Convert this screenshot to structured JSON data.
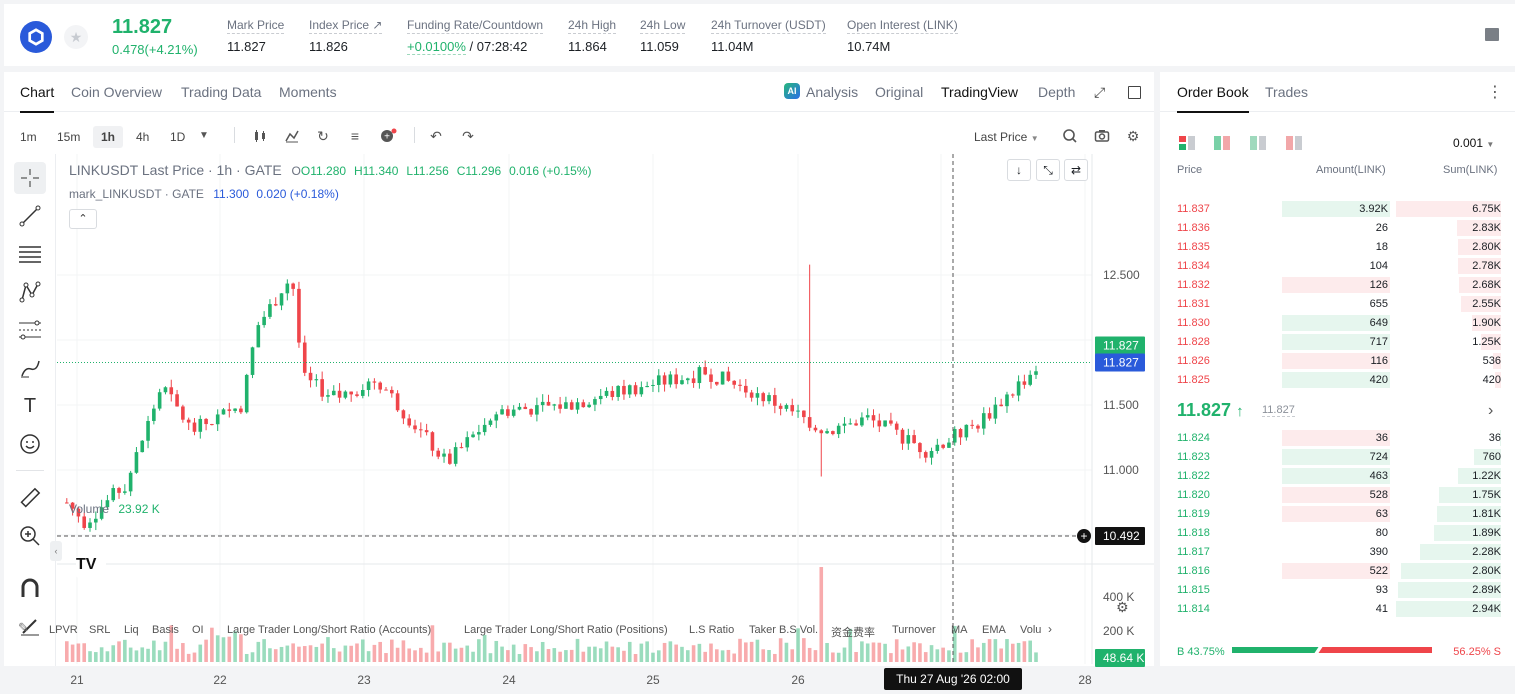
{
  "header": {
    "last_price": "11.827",
    "change": "0.478(+4.21%)",
    "stats": [
      {
        "label": "Mark Price",
        "value": "11.827"
      },
      {
        "label": "Index Price ↗",
        "value": "11.826"
      },
      {
        "label": "Funding Rate/Countdown",
        "value_green": "+0.0100%",
        "value": " / 07:28:42"
      },
      {
        "label": "24h High",
        "value": "11.864"
      },
      {
        "label": "24h Low",
        "value": "11.059"
      },
      {
        "label": "24h Turnover (USDT)",
        "value": "11.04M"
      },
      {
        "label": "Open Interest (LINK)",
        "value": "10.74M"
      }
    ],
    "colors": {
      "up": "#20b26c",
      "down": "#ef454a",
      "brand": "#2a5ada"
    }
  },
  "chart_panel": {
    "tabs": [
      "Chart",
      "Coin Overview",
      "Trading Data",
      "Moments"
    ],
    "active_tab": "Chart",
    "views": [
      "Analysis",
      "Original",
      "TradingView",
      "Depth"
    ],
    "selected_view": "TradingView",
    "timeframes": [
      "1m",
      "15m",
      "1h",
      "4h",
      "1D"
    ],
    "selected_timeframe": "1h",
    "price_type": "Last Price",
    "legend_title": "LINKUSDT Last Price · 1h · GATE",
    "legend_o": "O11.280",
    "legend_h": "H11.340",
    "legend_l": "L11.256",
    "legend_c": "C11.296",
    "legend_chg": "0.016 (+0.15%)",
    "mark_legend": "mark_LINKUSDT · GATE",
    "mark_val": "11.300",
    "mark_chg": "0.020 (+0.18%)",
    "volume_label": "Volume",
    "volume_val": "23.92 K",
    "price_axis": [
      "12.500",
      "11.500",
      "11.000"
    ],
    "vol_axis": [
      "400 K",
      "200 K"
    ],
    "last_tag_1": "11.827",
    "last_tag_2": "11.827",
    "cross_price": "10.492",
    "vol_tag": "48.64 K",
    "date_axis": [
      "21",
      "22",
      "23",
      "24",
      "25",
      "26",
      "28"
    ],
    "cross_date": "Thu 27 Aug '26   02:00",
    "indicators": [
      "LPVR",
      "SRL",
      "Liq",
      "Basis",
      "OI",
      "Large Trader Long/Short Ratio (Accounts)",
      "Large Trader Long/Short Ratio (Positions)",
      "L.S Ratio",
      "Taker B.S Vol.",
      "资金费率",
      "Turnover",
      "MA",
      "EMA",
      "Volu"
    ]
  },
  "chart_data": {
    "type": "candlestick",
    "title": "LINKUSDT Last Price · 1h · GATE",
    "x_range": [
      "21",
      "28"
    ],
    "ylim": [
      10.49,
      12.55
    ],
    "last_price": 11.827,
    "ohlc_sample": {
      "open": 11.28,
      "high": 11.34,
      "low": 11.256,
      "close": 11.296
    },
    "key_points": [
      {
        "x": "21",
        "price": 10.75
      },
      {
        "x": "21.6",
        "price": 11.65
      },
      {
        "x": "22.5",
        "price": 12.5
      },
      {
        "x": "22.55",
        "price": 10.95
      },
      {
        "x": "23.5",
        "price": 11.05
      },
      {
        "x": "25.4",
        "price": 11.75
      },
      {
        "x": "26.8",
        "price": 11.1
      },
      {
        "x": "27.6",
        "price": 11.827
      }
    ],
    "volume_peak": "approx 450 K at 22.5"
  },
  "orderbook": {
    "tabs": [
      "Order Book",
      "Trades"
    ],
    "active_tab": "Order Book",
    "precision": "0.001",
    "headers": [
      "Price",
      "Amount(LINK)",
      "Sum(LINK)"
    ],
    "asks": [
      {
        "price": "11.837",
        "amount": "3.92K",
        "sum": "6.75K",
        "amt_frac": 0.3,
        "sum_frac": 1.0,
        "amt_side": "buy"
      },
      {
        "price": "11.836",
        "amount": "26",
        "sum": "2.83K",
        "amt_frac": 0,
        "sum_frac": 0.42
      },
      {
        "price": "11.835",
        "amount": "18",
        "sum": "2.80K",
        "amt_frac": 0,
        "sum_frac": 0.41
      },
      {
        "price": "11.834",
        "amount": "104",
        "sum": "2.78K",
        "amt_frac": 0,
        "sum_frac": 0.41
      },
      {
        "price": "11.832",
        "amount": "126",
        "sum": "2.68K",
        "amt_frac": 0.3,
        "sum_frac": 0.4,
        "amt_side": "sell"
      },
      {
        "price": "11.831",
        "amount": "655",
        "sum": "2.55K",
        "amt_frac": 0,
        "sum_frac": 0.38
      },
      {
        "price": "11.830",
        "amount": "649",
        "sum": "1.90K",
        "amt_frac": 0.3,
        "sum_frac": 0.28,
        "amt_side": "buy"
      },
      {
        "price": "11.828",
        "amount": "717",
        "sum": "1.25K",
        "amt_frac": 0.3,
        "sum_frac": 0.19,
        "amt_side": "buy"
      },
      {
        "price": "11.826",
        "amount": "116",
        "sum": "536",
        "amt_frac": 0.3,
        "sum_frac": 0.08,
        "amt_side": "sell"
      },
      {
        "price": "11.825",
        "amount": "420",
        "sum": "420",
        "amt_frac": 0.3,
        "sum_frac": 0.06,
        "amt_side": "buy"
      }
    ],
    "mid_price": "11.827",
    "mid_mark": "11.827",
    "bids": [
      {
        "price": "11.824",
        "amount": "36",
        "sum": "36",
        "amt_frac": 0.3,
        "sum_frac": 0.01,
        "amt_side": "sell"
      },
      {
        "price": "11.823",
        "amount": "724",
        "sum": "760",
        "amt_frac": 0.3,
        "sum_frac": 0.26,
        "amt_side": "buy"
      },
      {
        "price": "11.822",
        "amount": "463",
        "sum": "1.22K",
        "amt_frac": 0.3,
        "sum_frac": 0.41,
        "amt_side": "buy"
      },
      {
        "price": "11.820",
        "amount": "528",
        "sum": "1.75K",
        "amt_frac": 0.3,
        "sum_frac": 0.59,
        "amt_side": "sell"
      },
      {
        "price": "11.819",
        "amount": "63",
        "sum": "1.81K",
        "amt_frac": 0.3,
        "sum_frac": 0.61,
        "amt_side": "sell"
      },
      {
        "price": "11.818",
        "amount": "80",
        "sum": "1.89K",
        "amt_frac": 0,
        "sum_frac": 0.64
      },
      {
        "price": "11.817",
        "amount": "390",
        "sum": "2.28K",
        "amt_frac": 0,
        "sum_frac": 0.77
      },
      {
        "price": "11.816",
        "amount": "522",
        "sum": "2.80K",
        "amt_frac": 0.3,
        "sum_frac": 0.95,
        "amt_side": "sell"
      },
      {
        "price": "11.815",
        "amount": "93",
        "sum": "2.89K",
        "amt_frac": 0,
        "sum_frac": 0.98
      },
      {
        "price": "11.814",
        "amount": "41",
        "sum": "2.94K",
        "amt_frac": 0,
        "sum_frac": 1.0
      }
    ],
    "buy_ratio": "B 43.75%",
    "sell_ratio": "56.25% S",
    "buy_pct": 43.75
  }
}
